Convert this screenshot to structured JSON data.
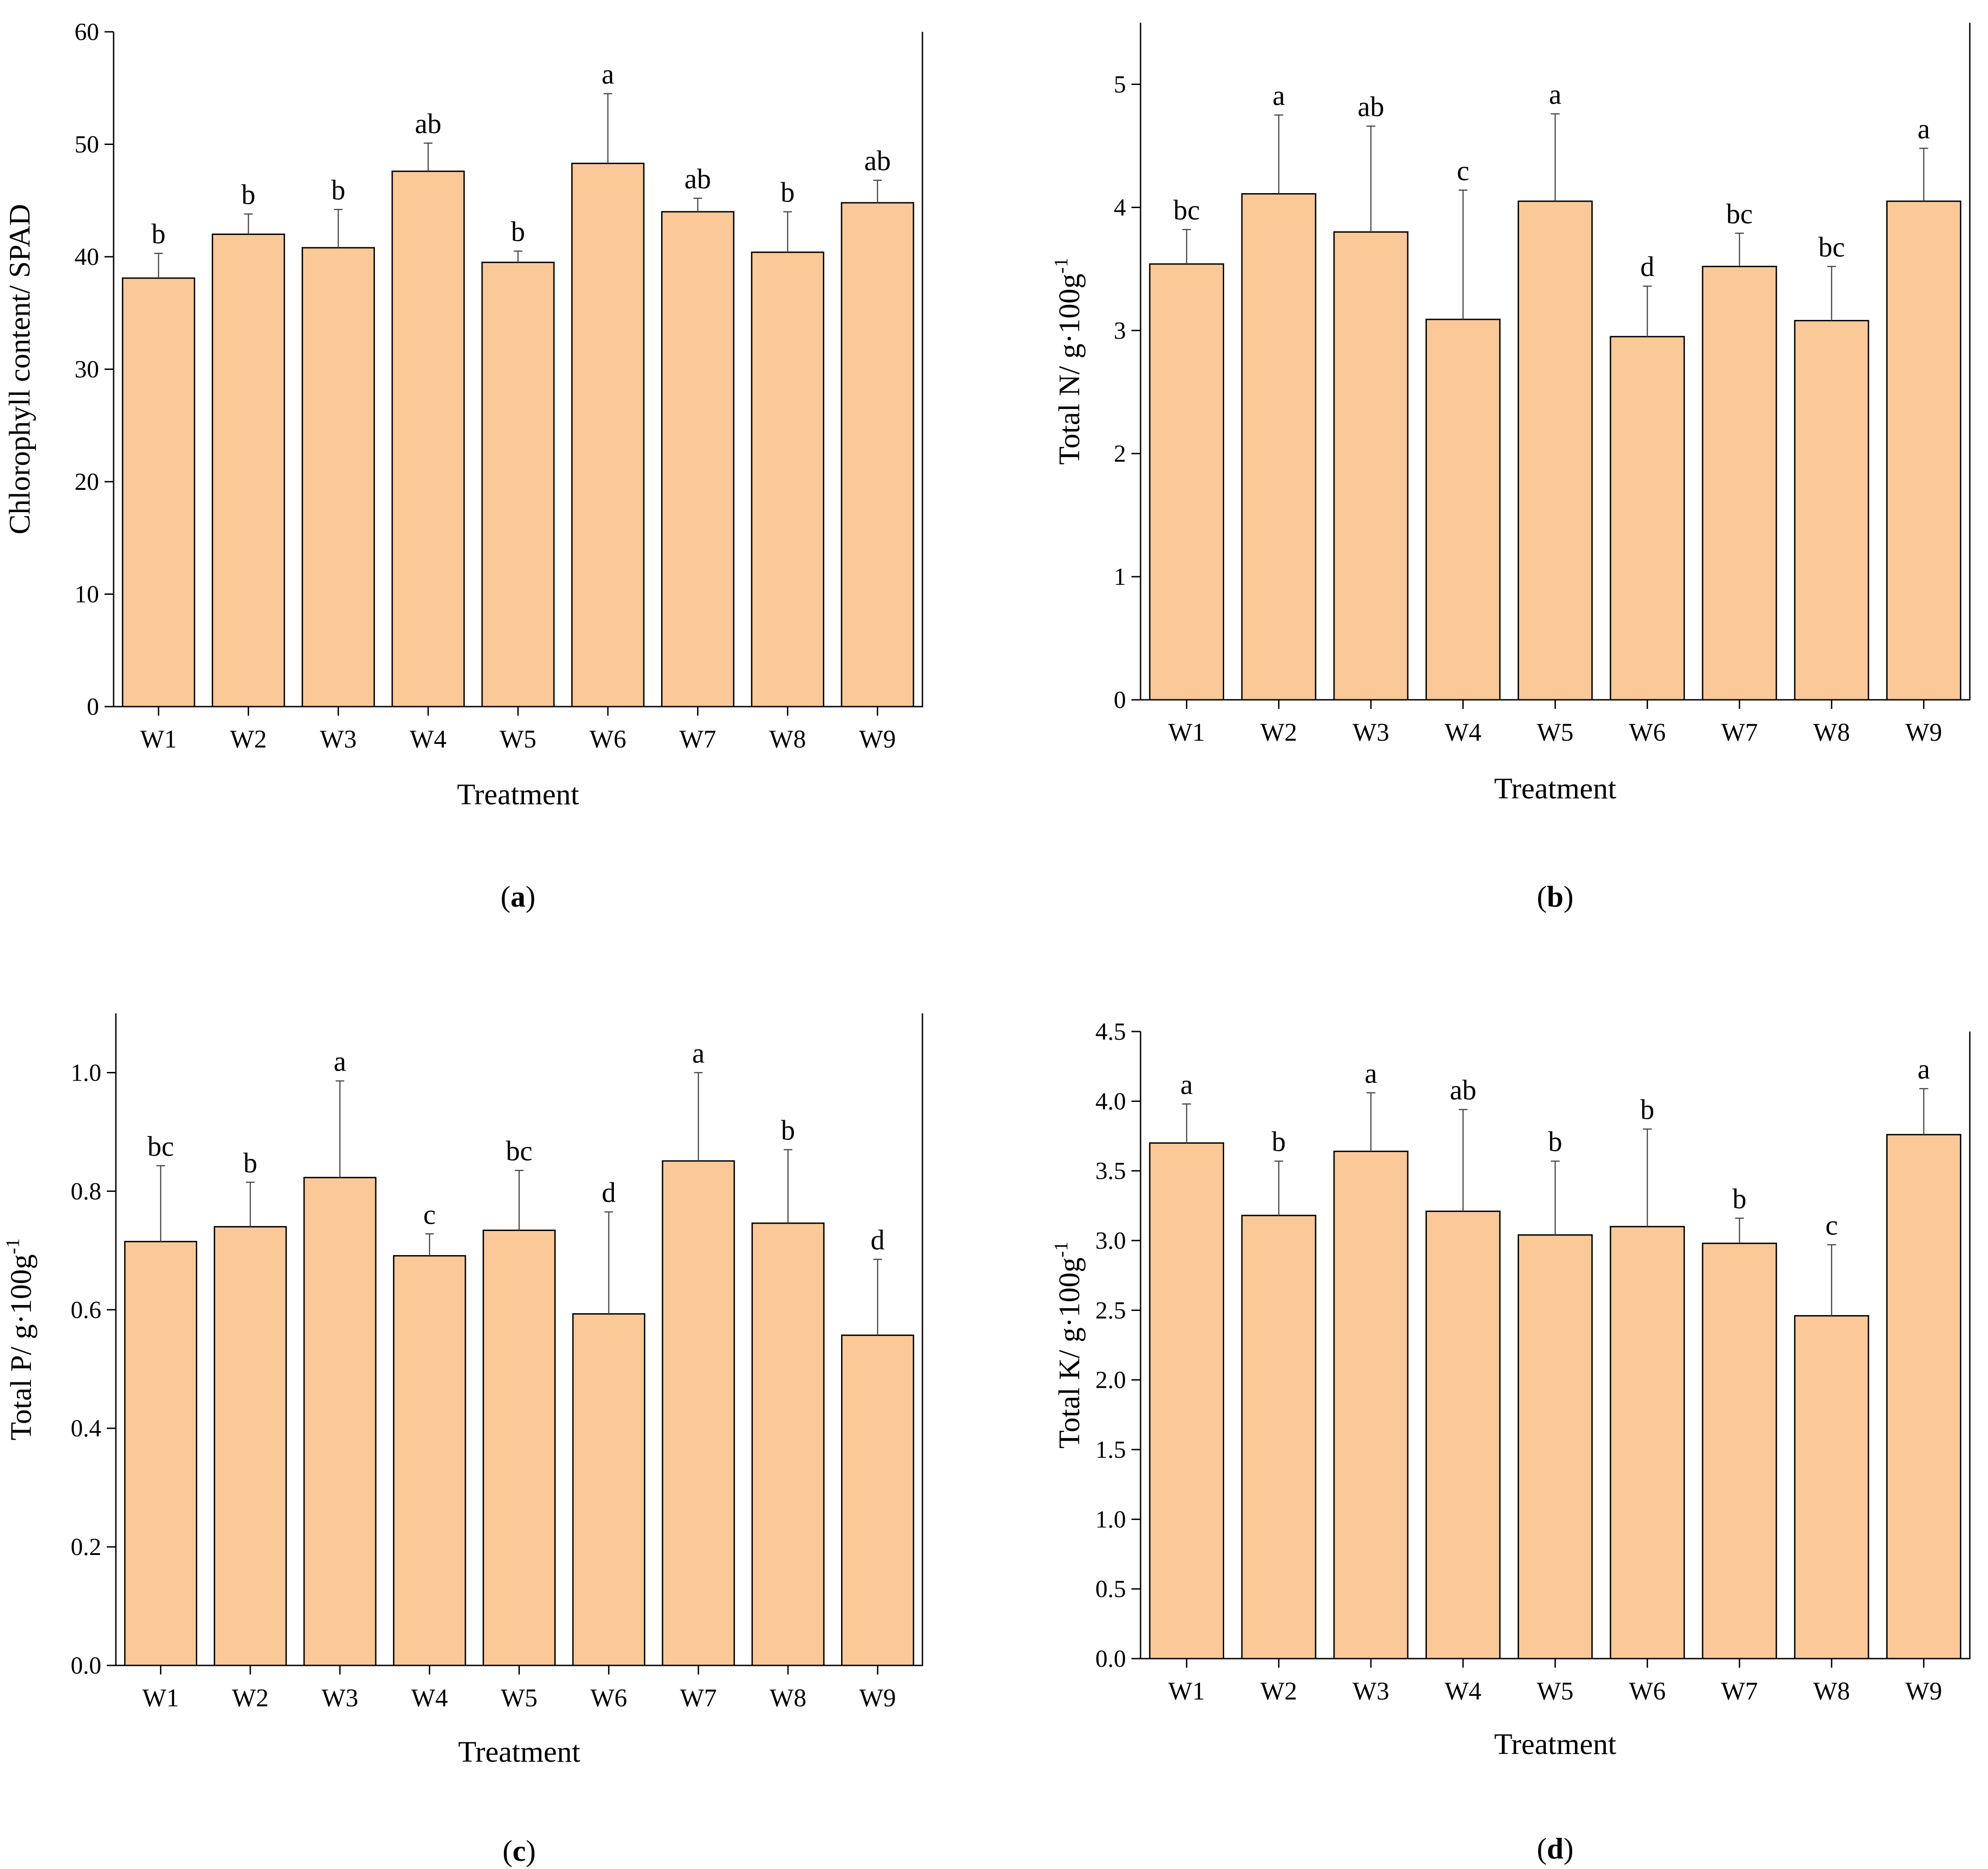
{
  "colors": {
    "bar_fill": "#FBC898",
    "bar_stroke": "#000000",
    "error_bar": "#444444"
  },
  "chart_data": [
    {
      "panel": "(a)",
      "panel_letter": "a",
      "type": "bar",
      "title": "",
      "xlabel": "Treatment",
      "ylabel": "Chlorophyll content/ SPAD",
      "categories": [
        "W1",
        "W2",
        "W3",
        "W4",
        "W5",
        "W6",
        "W7",
        "W8",
        "W9"
      ],
      "values": [
        38.1,
        42.0,
        40.8,
        47.6,
        39.5,
        48.3,
        44.0,
        40.4,
        44.8
      ],
      "errors": [
        2.2,
        1.8,
        3.4,
        2.5,
        1.0,
        6.2,
        1.2,
        3.6,
        2.0
      ],
      "letters": [
        "b",
        "b",
        "b",
        "ab",
        "b",
        "a",
        "ab",
        "b",
        "ab"
      ],
      "ylim": [
        0,
        60
      ],
      "yticks": [
        0,
        10,
        20,
        30,
        40,
        50,
        60
      ],
      "ytick_labels": [
        "0",
        "10",
        "20",
        "30",
        "40",
        "50",
        "60"
      ],
      "grid": false
    },
    {
      "panel": "(b)",
      "panel_letter": "b",
      "type": "bar",
      "title": "",
      "xlabel": "Treatment",
      "ylabel": "Total N/ g·100g",
      "ylabel_sup": "-1",
      "categories": [
        "W1",
        "W2",
        "W3",
        "W4",
        "W5",
        "W6",
        "W7",
        "W8",
        "W9"
      ],
      "values": [
        3.54,
        4.11,
        3.8,
        3.09,
        4.05,
        2.95,
        3.52,
        3.08,
        4.05
      ],
      "errors": [
        0.28,
        0.64,
        0.86,
        1.05,
        0.71,
        0.41,
        0.27,
        0.44,
        0.43
      ],
      "letters": [
        "bc",
        "a",
        "ab",
        "c",
        "a",
        "d",
        "bc",
        "bc",
        "a"
      ],
      "ylim": [
        0,
        5.5
      ],
      "yticks": [
        0,
        1,
        2,
        3,
        4,
        5
      ],
      "ytick_labels": [
        "0",
        "1",
        "2",
        "3",
        "4",
        "5"
      ],
      "grid": false
    },
    {
      "panel": "(c)",
      "panel_letter": "c",
      "type": "bar",
      "title": "",
      "xlabel": "Treatment",
      "ylabel": "Total P/ g·100g",
      "ylabel_sup": "-1",
      "categories": [
        "W1",
        "W2",
        "W3",
        "W4",
        "W5",
        "W6",
        "W7",
        "W8",
        "W9"
      ],
      "values": [
        0.715,
        0.74,
        0.823,
        0.691,
        0.734,
        0.593,
        0.851,
        0.746,
        0.557
      ],
      "errors": [
        0.128,
        0.075,
        0.163,
        0.037,
        0.101,
        0.172,
        0.149,
        0.124,
        0.128
      ],
      "letters": [
        "bc",
        "b",
        "a",
        "c",
        "bc",
        "d",
        "a",
        "b",
        "d"
      ],
      "ylim": [
        0,
        1.1
      ],
      "yticks": [
        0.0,
        0.2,
        0.4,
        0.6,
        0.8,
        1.0
      ],
      "ytick_labels": [
        "0.0",
        "0.2",
        "0.4",
        "0.6",
        "0.8",
        "1.0"
      ],
      "grid": false
    },
    {
      "panel": "(d)",
      "panel_letter": "d",
      "type": "bar",
      "title": "",
      "xlabel": "Treatment",
      "ylabel": "Total K/ g·100g",
      "ylabel_sup": "-1",
      "categories": [
        "W1",
        "W2",
        "W3",
        "W4",
        "W5",
        "W6",
        "W7",
        "W8",
        "W9"
      ],
      "values": [
        3.7,
        3.18,
        3.64,
        3.21,
        3.04,
        3.1,
        2.98,
        2.46,
        3.76
      ],
      "errors": [
        0.28,
        0.39,
        0.42,
        0.73,
        0.53,
        0.7,
        0.18,
        0.51,
        0.33
      ],
      "letters": [
        "a",
        "b",
        "a",
        "ab",
        "b",
        "b",
        "b",
        "c",
        "a"
      ],
      "ylim": [
        0,
        4.5
      ],
      "yticks": [
        0.0,
        0.5,
        1.0,
        1.5,
        2.0,
        2.5,
        3.0,
        3.5,
        4.0,
        4.5
      ],
      "ytick_labels": [
        "0.0",
        "0.5",
        "1.0",
        "1.5",
        "2.0",
        "2.5",
        "3.0",
        "3.5",
        "4.0",
        "4.5"
      ],
      "grid": false
    }
  ]
}
